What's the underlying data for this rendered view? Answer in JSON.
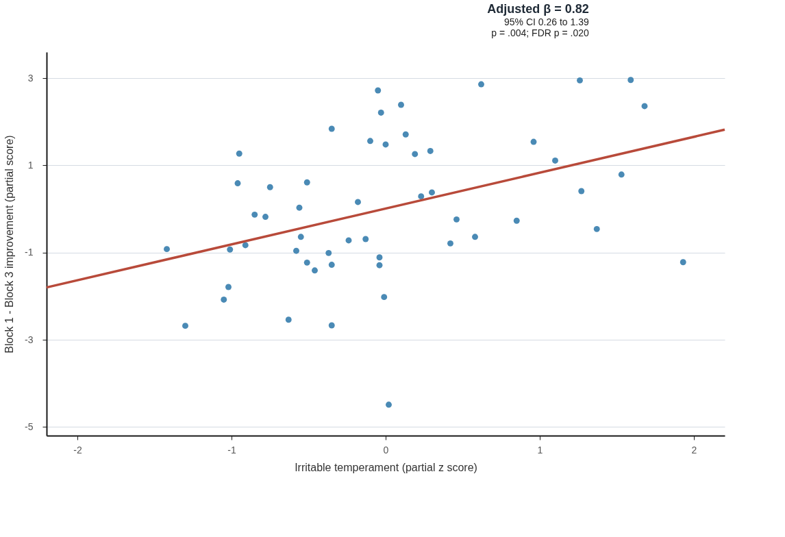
{
  "chart_data": {
    "type": "scatter",
    "xlabel": "Irritable temperament (partial z score)",
    "ylabel": "Block 1 - Block 3 improvement (partial score)",
    "annotations": [
      "Adjusted β = 0.82",
      "95% CI 0.26 to 1.39",
      "p = .004; FDR p = .020"
    ],
    "xlim": [
      -2.2,
      2.2
    ],
    "xticks": [
      -2,
      -1,
      0,
      1,
      2
    ],
    "ylim": [
      -5.2,
      3.6
    ],
    "yticks": [
      -5,
      -3,
      -1,
      1,
      3
    ],
    "grid": "y",
    "series": [
      {
        "color": "#4a8ab5",
        "marker": "circle",
        "x": [
          -1.42,
          -1.3,
          -1.05,
          -1.02,
          -1.01,
          -0.95,
          -0.96,
          -0.91,
          -0.85,
          -0.78,
          -0.75,
          -0.63,
          -0.56,
          -0.55,
          -0.51,
          -0.58,
          -0.51,
          -0.46,
          -0.37,
          -0.35,
          -0.35,
          -0.35,
          -0.24,
          -0.18,
          -0.13,
          -0.1,
          -0.05,
          -0.04,
          -0.04,
          -0.03,
          -0.01,
          0.0,
          0.02,
          0.1,
          0.13,
          0.19,
          0.23,
          0.29,
          0.3,
          0.42,
          0.46,
          0.58,
          0.62,
          0.85,
          0.96,
          1.1,
          1.26,
          1.27,
          1.37,
          1.53,
          1.59,
          1.68,
          1.93
        ],
        "values": [
          -0.92,
          -2.68,
          -2.08,
          -1.79,
          -0.93,
          1.27,
          0.59,
          -0.83,
          -0.13,
          -0.18,
          0.5,
          -2.54,
          0.03,
          -0.64,
          0.61,
          -0.96,
          -1.23,
          -1.41,
          -1.01,
          1.84,
          -1.28,
          -2.67,
          -0.72,
          0.16,
          -0.69,
          1.56,
          2.72,
          -1.11,
          -1.29,
          2.21,
          -2.02,
          1.48,
          -4.49,
          2.39,
          1.71,
          1.26,
          0.29,
          1.33,
          0.38,
          -0.79,
          -0.24,
          -0.64,
          2.86,
          -0.27,
          1.54,
          1.11,
          2.95,
          0.41,
          -0.46,
          0.79,
          2.96,
          2.36,
          -1.22
        ]
      },
      {
        "type": "line",
        "color": "#b84a3a",
        "marker": "none",
        "x": [
          -2.2,
          2.2
        ],
        "values": [
          -1.8,
          1.82
        ]
      }
    ]
  }
}
